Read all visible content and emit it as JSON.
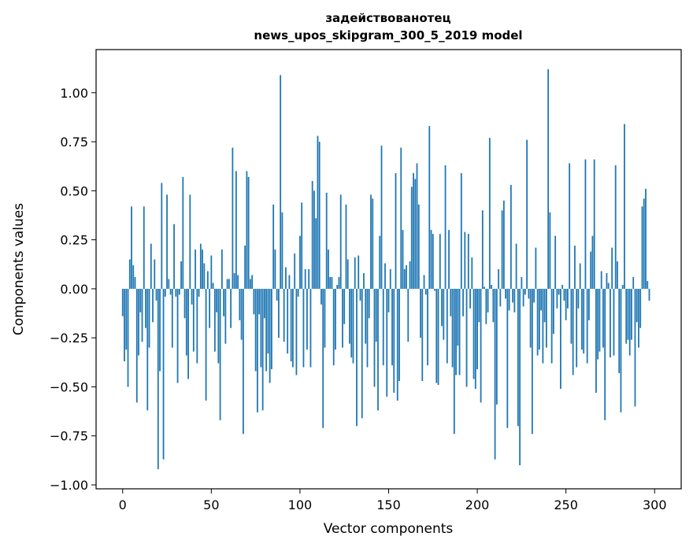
{
  "chart_data": {
    "type": "bar",
    "title": [
      "задействованотец",
      "news_upos_skipgram_300_5_2019 model"
    ],
    "xlabel": "Vector components",
    "ylabel": "Components values",
    "xlim": [
      -15,
      315
    ],
    "ylim": [
      -1.02,
      1.22
    ],
    "xticks": [
      0,
      50,
      100,
      150,
      200,
      250,
      300
    ],
    "yticks": [
      -1.0,
      -0.75,
      -0.5,
      -0.25,
      0.0,
      0.25,
      0.5,
      0.75,
      1.0
    ],
    "ytick_labels": [
      "−1.00",
      "−0.75",
      "−0.50",
      "−0.25",
      "0.00",
      "0.25",
      "0.50",
      "0.75",
      "1.00"
    ],
    "bar_color": "#1f77b4",
    "grid": false,
    "values": [
      -0.14,
      -0.37,
      -0.31,
      -0.5,
      0.15,
      0.42,
      0.12,
      0.06,
      -0.58,
      -0.34,
      -0.12,
      -0.27,
      0.42,
      -0.2,
      -0.62,
      -0.3,
      0.23,
      -0.17,
      0.15,
      -0.06,
      -0.92,
      -0.42,
      0.54,
      -0.87,
      -0.04,
      0.48,
      0.05,
      -0.03,
      -0.3,
      0.33,
      -0.04,
      -0.48,
      -0.03,
      0.14,
      0.57,
      -0.15,
      -0.34,
      -0.46,
      0.48,
      -0.08,
      -0.32,
      0.2,
      -0.38,
      -0.04,
      0.23,
      0.2,
      0.13,
      -0.57,
      0.09,
      -0.2,
      0.17,
      0.03,
      -0.32,
      -0.12,
      -0.38,
      -0.67,
      0.2,
      -0.14,
      -0.28,
      0.05,
      0.05,
      -0.2,
      0.72,
      0.08,
      0.6,
      0.07,
      -0.16,
      -0.26,
      -0.74,
      0.22,
      0.6,
      0.57,
      0.05,
      0.07,
      -0.13,
      -0.42,
      -0.63,
      -0.13,
      -0.4,
      -0.62,
      -0.15,
      -0.42,
      -0.33,
      -0.48,
      -0.41,
      0.43,
      0.2,
      -0.06,
      -0.25,
      1.09,
      0.39,
      -0.27,
      0.11,
      -0.33,
      0.07,
      -0.37,
      -0.4,
      0.18,
      -0.44,
      -0.04,
      0.27,
      0.44,
      -0.4,
      0.1,
      -0.31,
      0.1,
      -0.4,
      0.55,
      0.5,
      0.36,
      0.78,
      0.75,
      -0.08,
      -0.71,
      -0.3,
      0.49,
      0.2,
      0.06,
      0.06,
      -0.39,
      -0.31,
      0.02,
      0.06,
      0.48,
      -0.3,
      -0.18,
      0.43,
      0.15,
      -0.28,
      -0.35,
      -0.38,
      0.16,
      -0.7,
      0.17,
      -0.06,
      -0.66,
      0.08,
      -0.28,
      -0.4,
      -0.15,
      0.48,
      0.46,
      -0.5,
      -0.27,
      -0.62,
      0.27,
      0.73,
      -0.39,
      0.13,
      -0.55,
      -0.12,
      0.1,
      -0.39,
      -0.53,
      0.59,
      -0.57,
      -0.47,
      0.72,
      0.3,
      0.1,
      0.12,
      -0.27,
      0.14,
      0.52,
      0.59,
      0.56,
      0.64,
      0.43,
      -0.25,
      -0.47,
      0.07,
      -0.03,
      -0.39,
      0.83,
      0.3,
      0.28,
      -0.01,
      -0.48,
      -0.49,
      0.28,
      -0.19,
      -0.26,
      0.63,
      -0.38,
      0.3,
      -0.14,
      -0.4,
      -0.74,
      -0.44,
      -0.29,
      -0.44,
      0.59,
      -0.14,
      0.29,
      -0.5,
      0.28,
      -0.1,
      0.16,
      -0.46,
      -0.51,
      -0.41,
      -0.17,
      -0.58,
      0.4,
      0.01,
      -0.18,
      -0.12,
      0.77,
      0.02,
      -0.17,
      -0.87,
      -0.59,
      0.1,
      -0.09,
      0.4,
      0.45,
      -0.05,
      -0.71,
      -0.11,
      0.53,
      -0.07,
      -0.12,
      0.23,
      -0.7,
      -0.9,
      0.06,
      -0.09,
      -0.03,
      0.76,
      -0.05,
      -0.3,
      -0.74,
      -0.07,
      0.21,
      -0.34,
      -0.31,
      -0.11,
      -0.38,
      -0.17,
      -0.3,
      1.12,
      0.39,
      -0.38,
      -0.23,
      0.27,
      -0.1,
      -0.03,
      -0.51,
      0.02,
      -0.06,
      -0.16,
      -0.1,
      0.64,
      -0.28,
      -0.44,
      0.22,
      -0.4,
      -0.1,
      0.13,
      -0.31,
      -0.33,
      0.66,
      -0.38,
      -0.16,
      0.19,
      0.27,
      0.66,
      -0.53,
      -0.36,
      -0.32,
      0.09,
      -0.3,
      -0.67,
      0.08,
      0.03,
      -0.35,
      0.21,
      -0.34,
      0.63,
      0.14,
      -0.43,
      -0.63,
      0.02,
      0.84,
      -0.28,
      -0.26,
      -0.34,
      -0.26,
      0.06,
      -0.6,
      -0.17,
      -0.3,
      -0.2,
      0.42,
      0.46,
      0.51,
      0.04,
      -0.06
    ]
  }
}
